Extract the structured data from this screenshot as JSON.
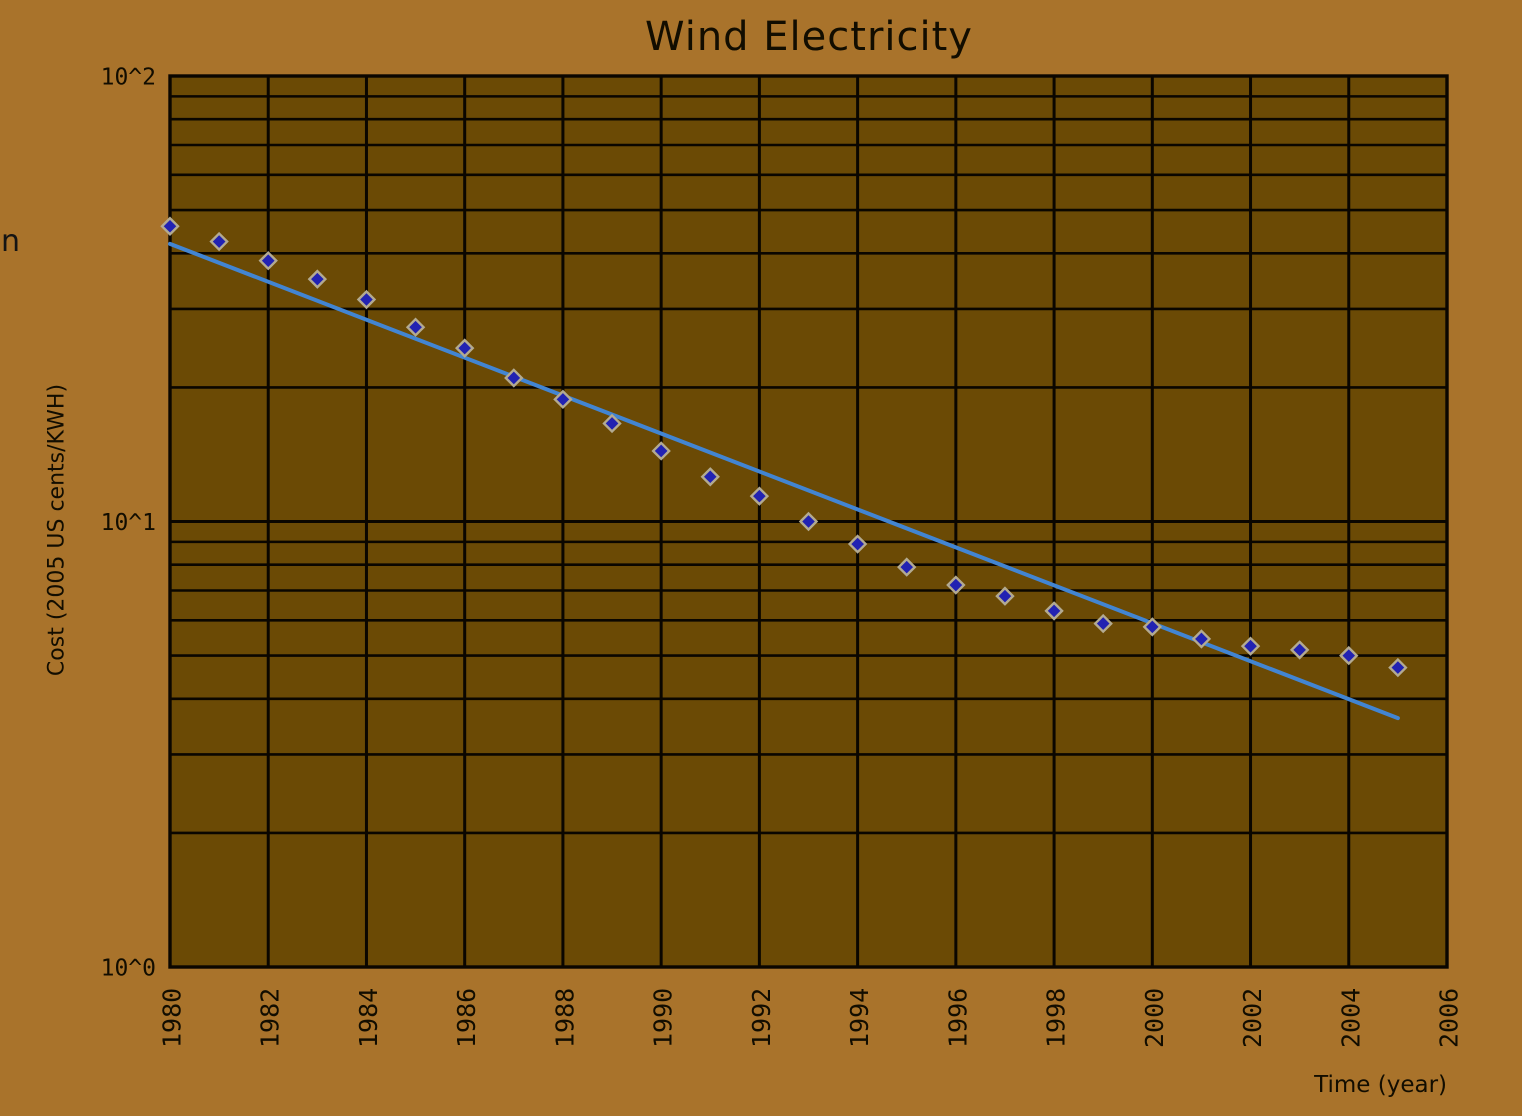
{
  "chart_data": {
    "type": "scatter",
    "title": "Wind Electricity",
    "xlabel": "Time (year)",
    "ylabel": "Cost (2005 US cents/KWH)",
    "x_scale": "linear",
    "y_scale": "log",
    "xlim": [
      1980,
      2006
    ],
    "ylim": [
      1,
      100
    ],
    "x_tick_step": 2,
    "x_tick_labels": [
      "1980",
      "1982",
      "1984",
      "1986",
      "1988",
      "1990",
      "1992",
      "1994",
      "1996",
      "1998",
      "2000",
      "2002",
      "2004",
      "2006"
    ],
    "y_tick_labels": [
      {
        "label": "10^0",
        "value": 1
      },
      {
        "label": "10^1",
        "value": 10
      },
      {
        "label": "10^2",
        "value": 100
      }
    ],
    "grid": {
      "vertical_years": [
        1982,
        1984,
        1986,
        1988,
        1990,
        1992,
        1994,
        1996,
        1998,
        2000,
        2002,
        2004
      ],
      "horizontal_minor_values": [
        2,
        3,
        4,
        5,
        6,
        7,
        8,
        9,
        20,
        30,
        40,
        50,
        60,
        70,
        80,
        90
      ],
      "horizontal_major_values": [
        10
      ]
    },
    "series": [
      {
        "name": "wind-cost-points",
        "marker": "diamond",
        "x": [
          1980,
          1981,
          1982,
          1983,
          1984,
          1985,
          1986,
          1987,
          1988,
          1989,
          1990,
          1991,
          1992,
          1993,
          1994,
          1995,
          1996,
          1997,
          1998,
          1999,
          2000,
          2001,
          2002,
          2003,
          2004,
          2005
        ],
        "y": [
          46,
          42.5,
          38.5,
          35,
          31.5,
          27.3,
          24.5,
          21,
          18.8,
          16.6,
          14.4,
          12.6,
          11.4,
          10,
          8.9,
          7.9,
          7.2,
          6.8,
          6.3,
          5.9,
          5.8,
          5.45,
          5.25,
          5.15,
          5.0,
          4.7
        ]
      }
    ],
    "trend_line": {
      "name": "exponential-fit-line",
      "x": [
        1980,
        2005
      ],
      "y": [
        42.0,
        3.62
      ]
    },
    "clipped_left_label": "n"
  },
  "colors": {
    "background": "#a9732b",
    "plot_background": "#6b4a05",
    "gridline": "#0a0600",
    "border": "#0a0600",
    "point_fill": "#2222b2",
    "point_outline": "#b3aa91",
    "trend_line": "#4285d2",
    "text": "#120d00"
  }
}
